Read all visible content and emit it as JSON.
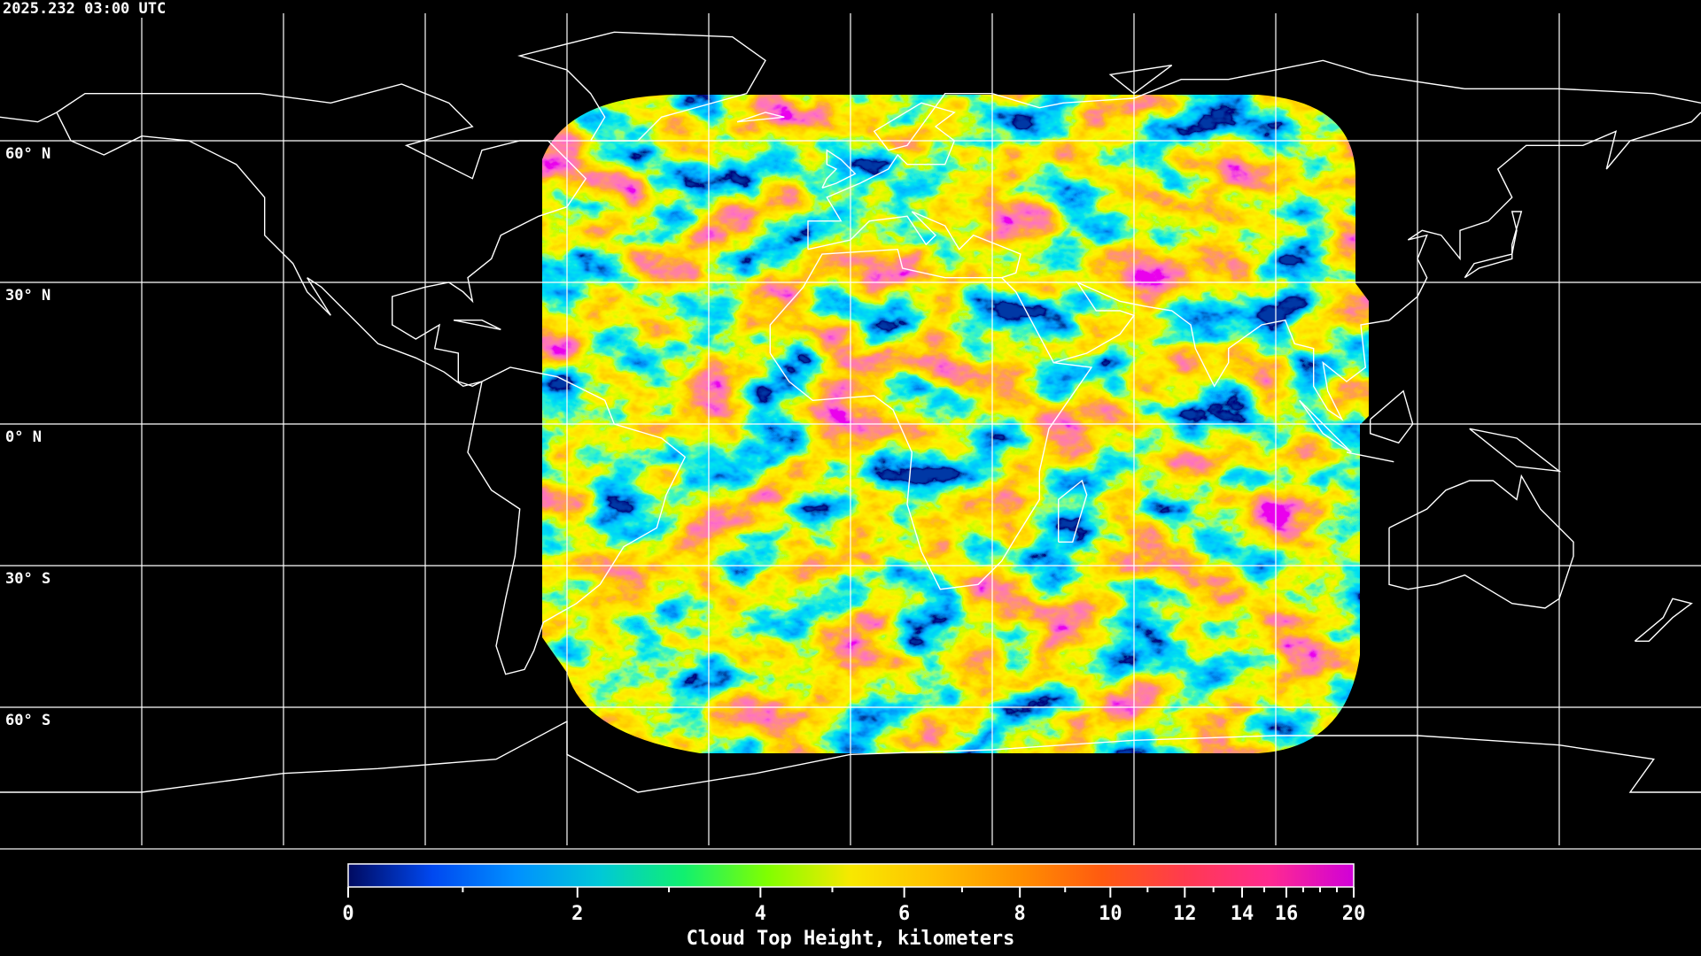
{
  "header": {
    "timestamp": "2025.232 03:00 UTC"
  },
  "map": {
    "projection": "equirectangular",
    "gridline_spacing_deg": 30,
    "latitude_labels": [
      "60° N",
      "30° N",
      "0° N",
      "30° S",
      "60° S"
    ],
    "coastline_color": "#ffffff",
    "gridline_color": "#ffffff",
    "background_color": "#000000"
  },
  "colorbar": {
    "title": "Cloud Top Height, kilometers",
    "tick_labels": [
      "0",
      "2",
      "4",
      "6",
      "8",
      "10",
      "12",
      "14",
      "16",
      "20"
    ],
    "minor_ticks": [
      1,
      3,
      5,
      7,
      9,
      11,
      13,
      15,
      17,
      18,
      19
    ],
    "range": [
      0,
      20
    ],
    "colors": [
      "#000a60",
      "#0048f0",
      "#0090ff",
      "#00c8d8",
      "#10f070",
      "#80ff00",
      "#f8e800",
      "#ffc000",
      "#ff9000",
      "#ff5a10",
      "#ff3a50",
      "#ff2a90",
      "#d000d8"
    ]
  }
}
